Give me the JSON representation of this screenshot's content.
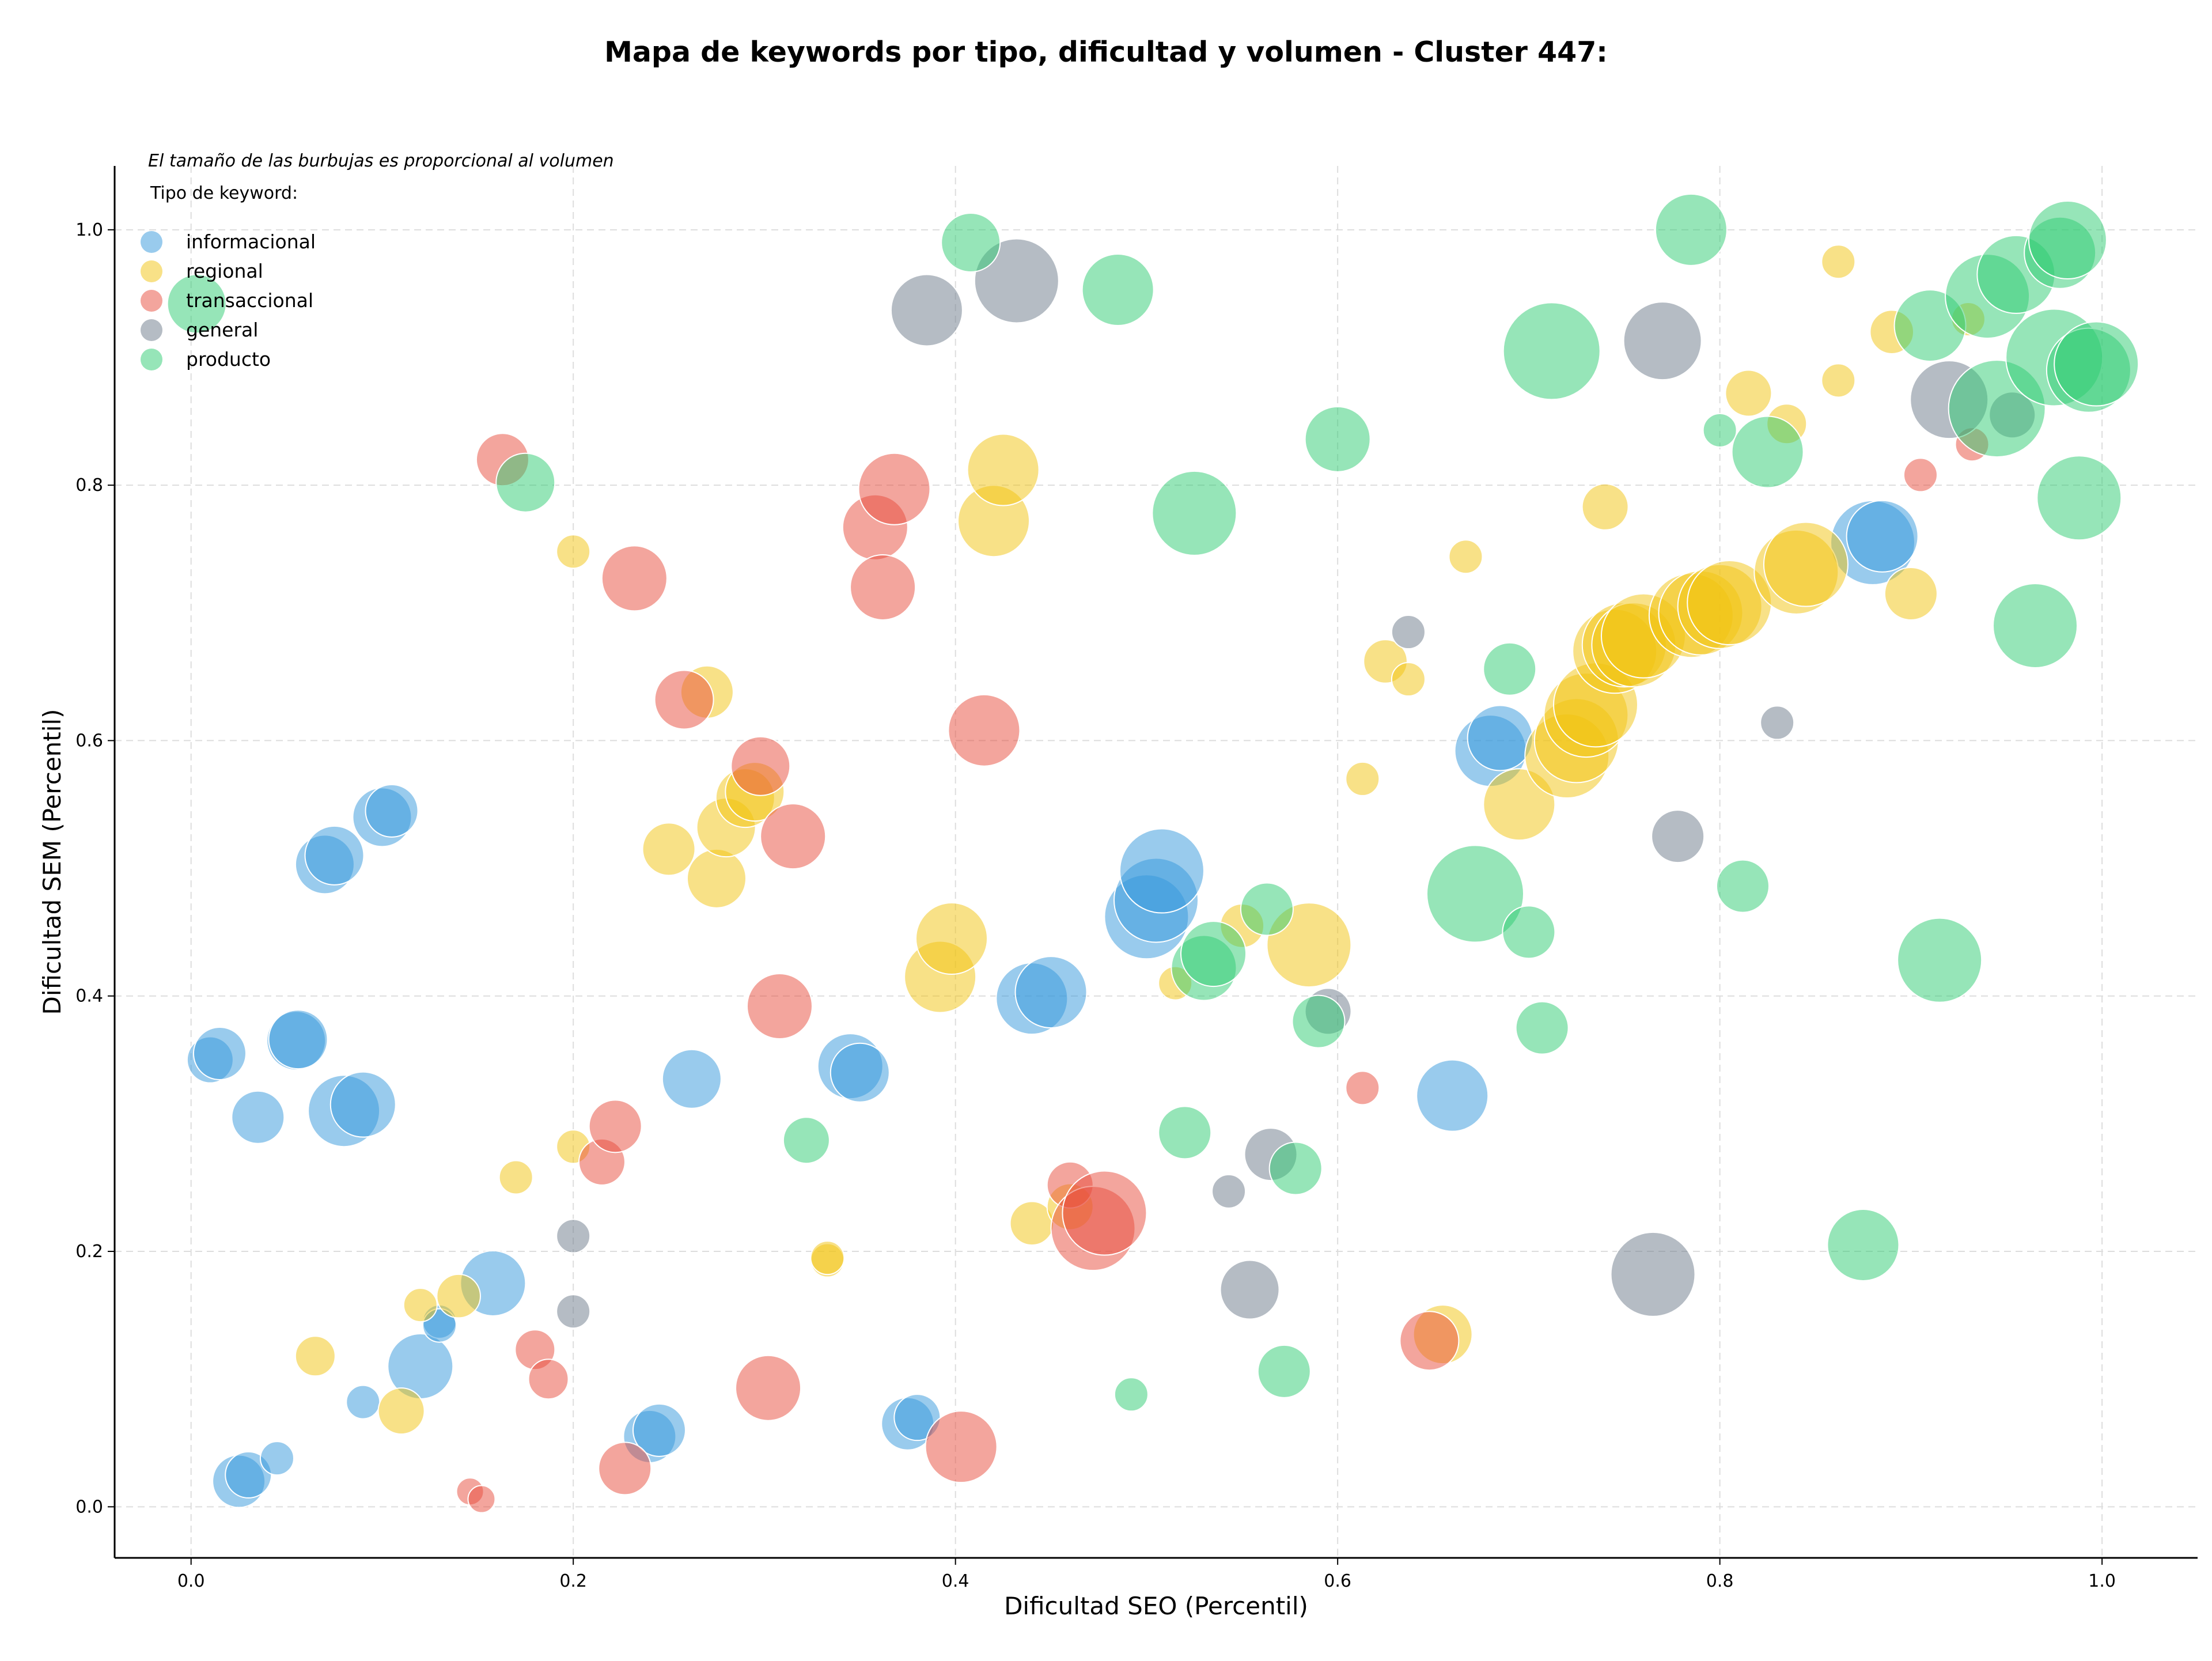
{
  "chart_data": {
    "type": "scatter",
    "title": "Mapa de keywords por tipo, dificultad y volumen - Cluster 447:",
    "xlabel": "Dificultad SEO (Percentil)",
    "ylabel": "Dificultad SEM (Percentil)",
    "xlim": [
      -0.04,
      1.05
    ],
    "ylim": [
      -0.04,
      1.05
    ],
    "xticks": [
      "0.0",
      "0.2",
      "0.4",
      "0.6",
      "0.8",
      "1.0"
    ],
    "yticks": [
      "0.0",
      "0.2",
      "0.4",
      "0.6",
      "0.8",
      "1.0"
    ],
    "grid": true,
    "size_note": "El tamaño de las burbujas es proporcional al volumen",
    "legend_title": "Tipo de keyword:",
    "legend_position": "top-left",
    "series": [
      {
        "name": "informacional",
        "color": "#3498db",
        "points": [
          [
            0.01,
            0.35,
            2
          ],
          [
            0.015,
            0.355,
            2.5
          ],
          [
            0.035,
            0.305,
            2.5
          ],
          [
            0.055,
            0.365,
            3
          ],
          [
            0.056,
            0.366,
            3
          ],
          [
            0.08,
            0.31,
            4
          ],
          [
            0.09,
            0.315,
            3.5
          ],
          [
            0.07,
            0.503,
            3
          ],
          [
            0.075,
            0.51,
            3
          ],
          [
            0.1,
            0.54,
            3
          ],
          [
            0.105,
            0.545,
            2.5
          ],
          [
            0.025,
            0.02,
            2.5
          ],
          [
            0.03,
            0.025,
            2
          ],
          [
            0.045,
            0.038,
            1
          ],
          [
            0.09,
            0.082,
            1
          ],
          [
            0.12,
            0.11,
            3.5
          ],
          [
            0.13,
            0.145,
            1
          ],
          [
            0.13,
            0.142,
            1
          ],
          [
            0.158,
            0.175,
            3.5
          ],
          [
            0.24,
            0.055,
            2.5
          ],
          [
            0.245,
            0.06,
            2.5
          ],
          [
            0.262,
            0.335,
            3
          ],
          [
            0.345,
            0.345,
            3.5
          ],
          [
            0.35,
            0.34,
            3
          ],
          [
            0.375,
            0.065,
            2.5
          ],
          [
            0.38,
            0.07,
            2
          ],
          [
            0.44,
            0.398,
            4
          ],
          [
            0.45,
            0.403,
            4
          ],
          [
            0.5,
            0.462,
            5
          ],
          [
            0.505,
            0.475,
            5
          ],
          [
            0.508,
            0.498,
            5
          ],
          [
            0.66,
            0.322,
            4
          ],
          [
            0.68,
            0.592,
            4
          ],
          [
            0.685,
            0.602,
            3.5
          ],
          [
            0.88,
            0.755,
            5
          ],
          [
            0.885,
            0.76,
            4
          ]
        ]
      },
      {
        "name": "regional",
        "color": "#f1c40f",
        "points": [
          [
            0.065,
            0.118,
            1.5
          ],
          [
            0.11,
            0.075,
            2
          ],
          [
            0.12,
            0.158,
            1
          ],
          [
            0.14,
            0.165,
            1.8
          ],
          [
            0.17,
            0.258,
            1
          ],
          [
            0.2,
            0.748,
            1
          ],
          [
            0.2,
            0.282,
            1
          ],
          [
            0.25,
            0.515,
            2.5
          ],
          [
            0.27,
            0.638,
            2.5
          ],
          [
            0.275,
            0.492,
            3
          ],
          [
            0.28,
            0.532,
            3
          ],
          [
            0.29,
            0.555,
            3
          ],
          [
            0.295,
            0.56,
            3
          ],
          [
            0.333,
            0.193,
            1
          ],
          [
            0.333,
            0.195,
            1
          ],
          [
            0.392,
            0.415,
            4
          ],
          [
            0.398,
            0.445,
            4
          ],
          [
            0.42,
            0.772,
            4
          ],
          [
            0.425,
            0.812,
            4
          ],
          [
            0.44,
            0.222,
            1.8
          ],
          [
            0.46,
            0.235,
            2
          ],
          [
            0.515,
            0.41,
            1
          ],
          [
            0.55,
            0.455,
            1.8
          ],
          [
            0.585,
            0.44,
            5
          ],
          [
            0.613,
            0.57,
            1
          ],
          [
            0.625,
            0.662,
            1.8
          ],
          [
            0.637,
            0.648,
            1
          ],
          [
            0.655,
            0.135,
            3
          ],
          [
            0.667,
            0.744,
            1
          ],
          [
            0.695,
            0.55,
            4
          ],
          [
            0.72,
            0.588,
            5
          ],
          [
            0.725,
            0.6,
            5
          ],
          [
            0.73,
            0.62,
            5
          ],
          [
            0.735,
            0.628,
            5
          ],
          [
            0.74,
            0.783,
            2
          ],
          [
            0.745,
            0.67,
            5
          ],
          [
            0.75,
            0.675,
            5
          ],
          [
            0.755,
            0.675,
            5
          ],
          [
            0.76,
            0.682,
            5
          ],
          [
            0.785,
            0.698,
            5
          ],
          [
            0.79,
            0.7,
            5
          ],
          [
            0.8,
            0.705,
            5
          ],
          [
            0.805,
            0.708,
            5
          ],
          [
            0.815,
            0.872,
            2
          ],
          [
            0.835,
            0.848,
            1.5
          ],
          [
            0.84,
            0.732,
            5
          ],
          [
            0.845,
            0.738,
            5
          ],
          [
            0.862,
            0.975,
            1
          ],
          [
            0.862,
            0.882,
            1
          ],
          [
            0.89,
            0.92,
            1.8
          ],
          [
            0.9,
            0.715,
            2.5
          ],
          [
            0.93,
            0.93,
            1
          ]
        ]
      },
      {
        "name": "transaccional",
        "color": "#e74c3c",
        "points": [
          [
            0.146,
            0.012,
            0.5
          ],
          [
            0.152,
            0.006,
            0.5
          ],
          [
            0.163,
            0.82,
            2.5
          ],
          [
            0.18,
            0.123,
            1.5
          ],
          [
            0.187,
            0.1,
            1.5
          ],
          [
            0.215,
            0.27,
            2
          ],
          [
            0.222,
            0.298,
            2.5
          ],
          [
            0.227,
            0.03,
            2.5
          ],
          [
            0.232,
            0.727,
            3.5
          ],
          [
            0.258,
            0.632,
            3
          ],
          [
            0.298,
            0.58,
            3
          ],
          [
            0.302,
            0.093,
            3.5
          ],
          [
            0.308,
            0.392,
            3.5
          ],
          [
            0.315,
            0.525,
            3.5
          ],
          [
            0.358,
            0.767,
            3.5
          ],
          [
            0.362,
            0.72,
            3.5
          ],
          [
            0.368,
            0.797,
            4
          ],
          [
            0.403,
            0.047,
            4
          ],
          [
            0.415,
            0.608,
            4
          ],
          [
            0.46,
            0.252,
            2
          ],
          [
            0.472,
            0.218,
            5
          ],
          [
            0.478,
            0.23,
            5
          ],
          [
            0.613,
            0.328,
            1
          ],
          [
            0.648,
            0.13,
            3
          ],
          [
            0.905,
            0.808,
            1
          ],
          [
            0.932,
            0.832,
            1
          ]
        ]
      },
      {
        "name": "general",
        "color": "#6c7a89",
        "points": [
          [
            0.2,
            0.212,
            1
          ],
          [
            0.2,
            0.153,
            1
          ],
          [
            0.385,
            0.937,
            4
          ],
          [
            0.432,
            0.96,
            5
          ],
          [
            0.543,
            0.247,
            1
          ],
          [
            0.554,
            0.17,
            3
          ],
          [
            0.565,
            0.276,
            2.5
          ],
          [
            0.595,
            0.388,
            2
          ],
          [
            0.637,
            0.685,
            1
          ],
          [
            0.765,
            0.182,
            5
          ],
          [
            0.77,
            0.913,
            4.5
          ],
          [
            0.778,
            0.525,
            2.5
          ],
          [
            0.83,
            0.614,
            1
          ],
          [
            0.92,
            0.867,
            4.5
          ],
          [
            0.953,
            0.855,
            2
          ]
        ]
      },
      {
        "name": "producto",
        "color": "#2ecc71",
        "points": [
          [
            0.003,
            0.942,
            3
          ],
          [
            0.175,
            0.802,
            3
          ],
          [
            0.322,
            0.287,
            2
          ],
          [
            0.408,
            0.99,
            3
          ],
          [
            0.485,
            0.953,
            4
          ],
          [
            0.492,
            0.088,
            1
          ],
          [
            0.52,
            0.293,
            2.5
          ],
          [
            0.525,
            0.778,
            5
          ],
          [
            0.53,
            0.422,
            3.5
          ],
          [
            0.535,
            0.433,
            3.5
          ],
          [
            0.563,
            0.468,
            2.5
          ],
          [
            0.572,
            0.106,
            2.5
          ],
          [
            0.578,
            0.265,
            2.5
          ],
          [
            0.59,
            0.38,
            2.5
          ],
          [
            0.6,
            0.836,
            3.5
          ],
          [
            0.672,
            0.48,
            6
          ],
          [
            0.69,
            0.656,
            2.5
          ],
          [
            0.7,
            0.45,
            2.5
          ],
          [
            0.707,
            0.375,
            2.5
          ],
          [
            0.712,
            0.905,
            6
          ],
          [
            0.785,
            1.0,
            4
          ],
          [
            0.8,
            0.843,
            1
          ],
          [
            0.812,
            0.486,
            2.5
          ],
          [
            0.825,
            0.826,
            4
          ],
          [
            0.875,
            0.205,
            4
          ],
          [
            0.91,
            0.925,
            4
          ],
          [
            0.915,
            0.428,
            5
          ],
          [
            0.94,
            0.948,
            5
          ],
          [
            0.945,
            0.86,
            6
          ],
          [
            0.955,
            0.965,
            4.5
          ],
          [
            0.965,
            0.69,
            5
          ],
          [
            0.978,
            0.982,
            4
          ],
          [
            0.975,
            0.9,
            6
          ],
          [
            0.982,
            0.992,
            4.5
          ],
          [
            0.988,
            0.79,
            5
          ],
          [
            0.993,
            0.89,
            5
          ],
          [
            0.997,
            0.895,
            5
          ]
        ]
      }
    ]
  }
}
